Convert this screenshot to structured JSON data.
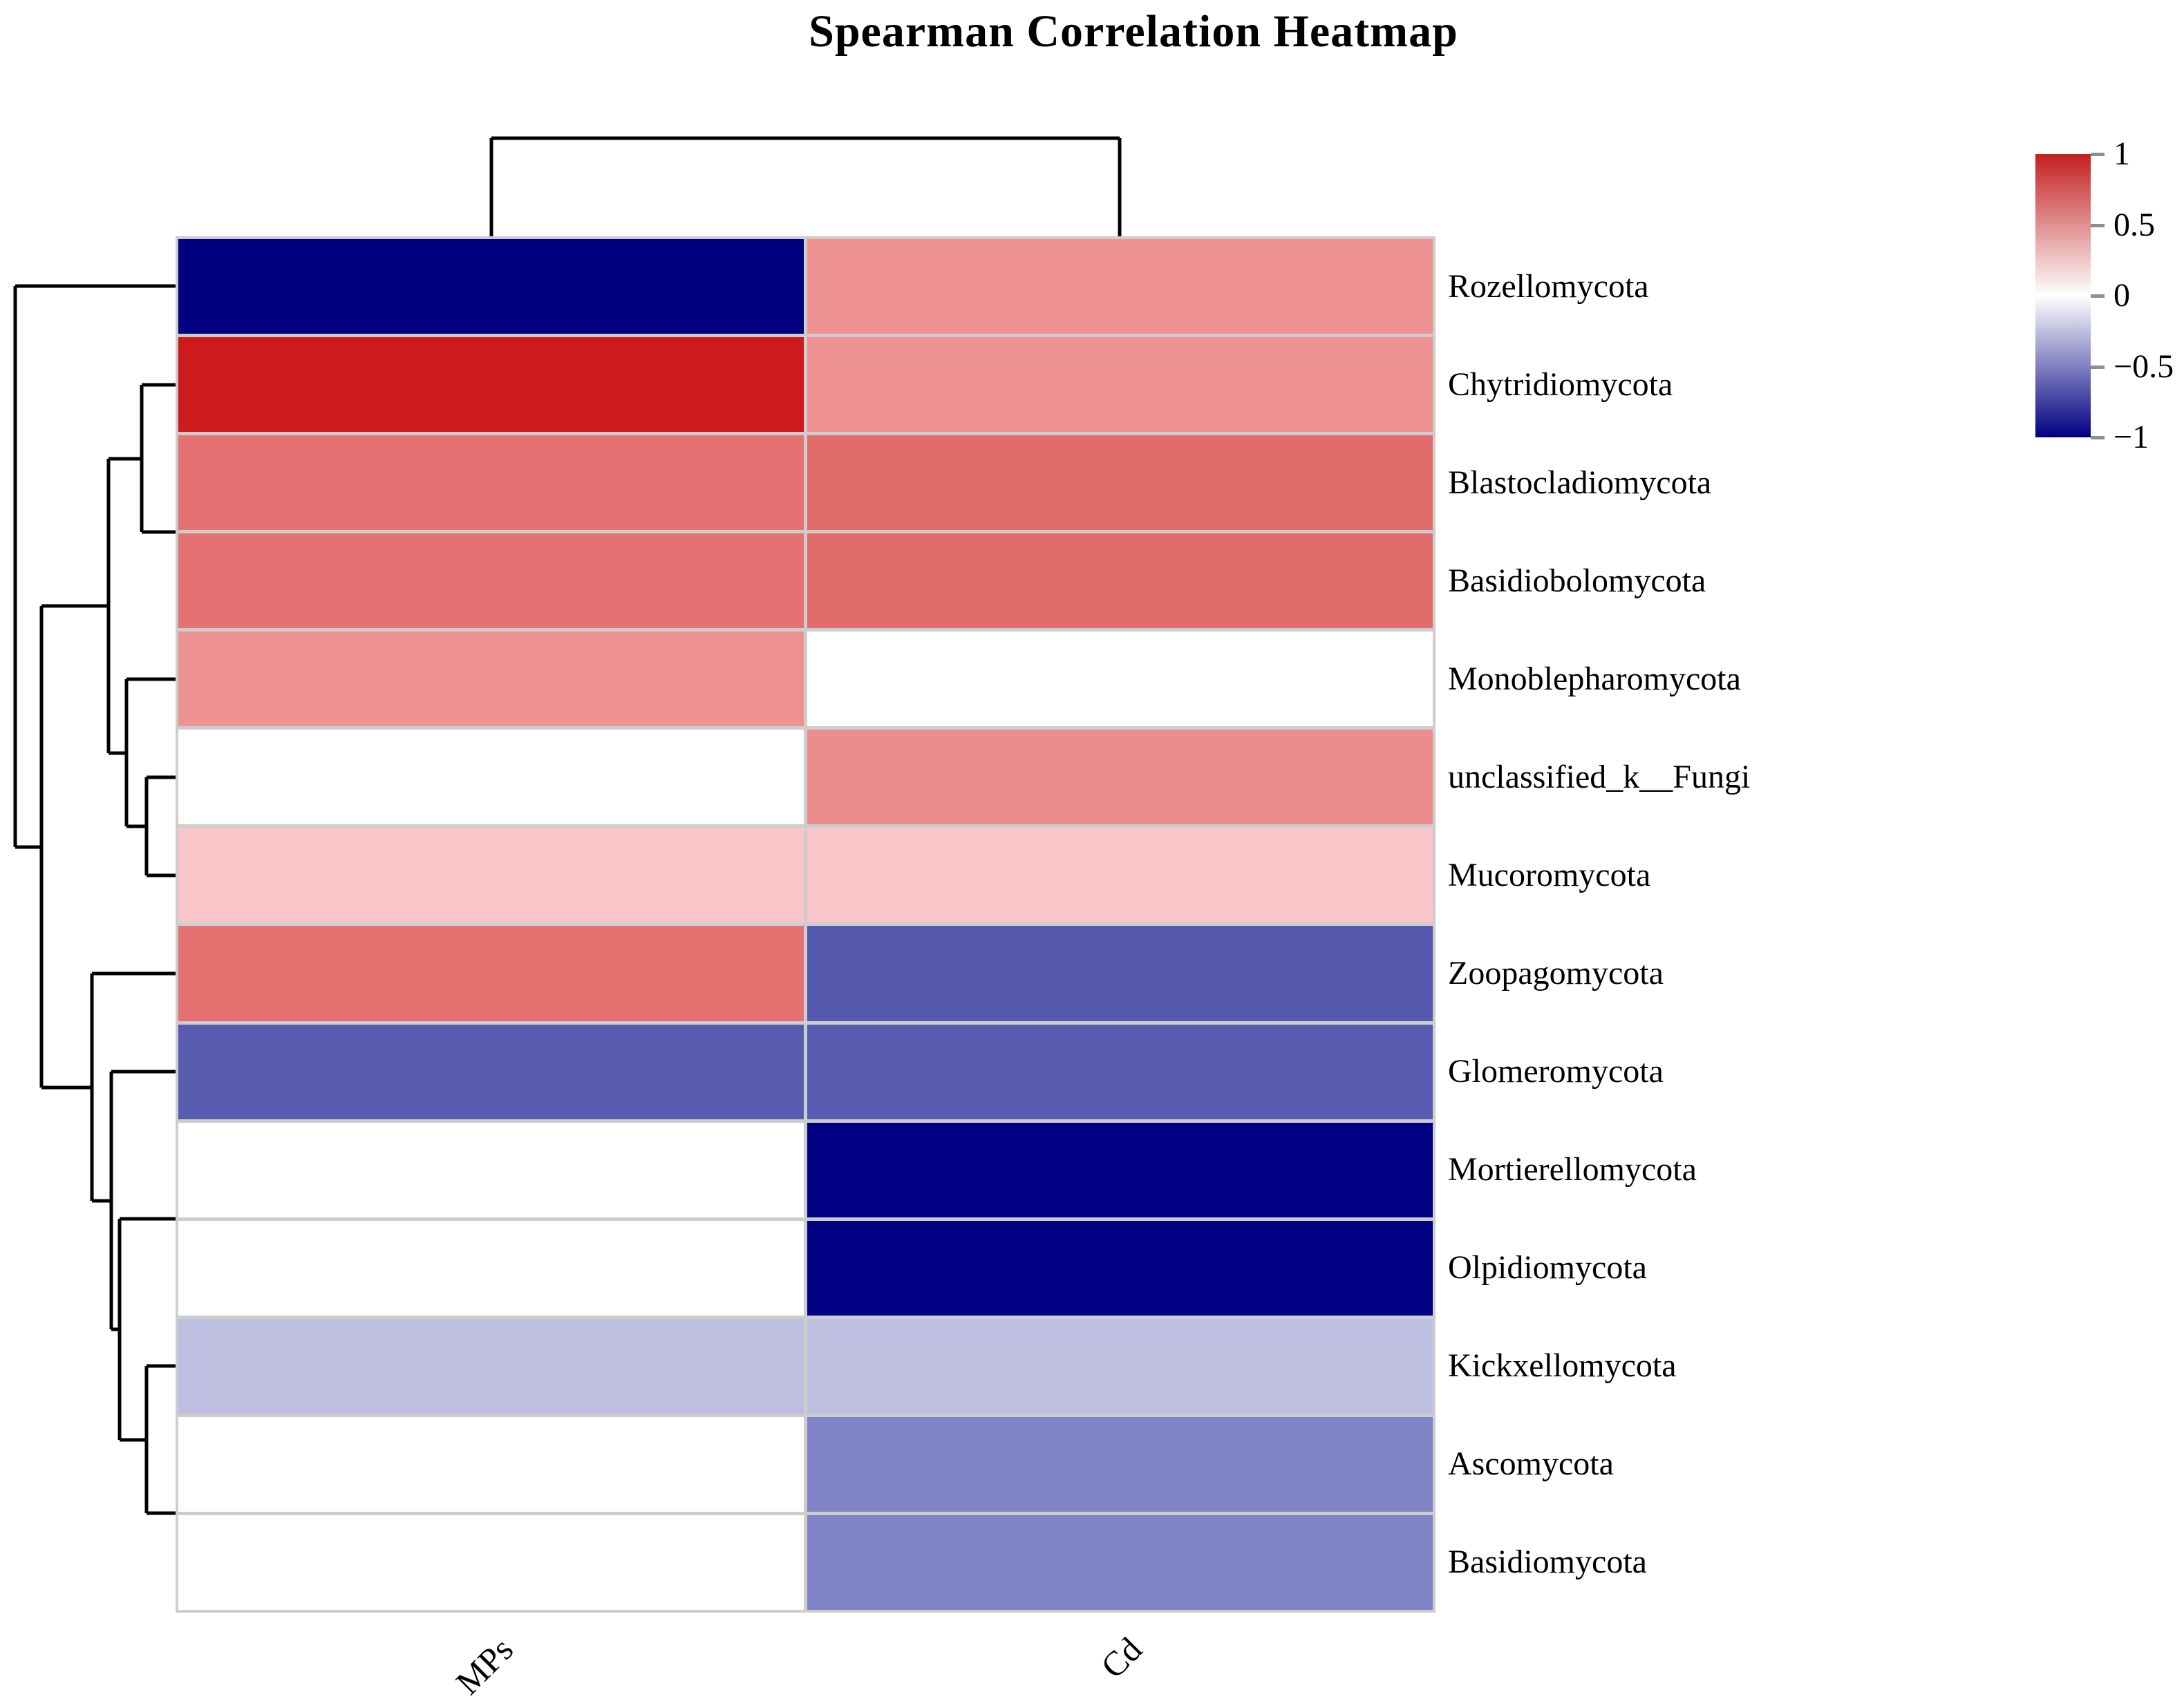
{
  "title": "Spearman Correlation Heatmap",
  "chart_data": {
    "type": "heatmap",
    "title": "Spearman Correlation Heatmap",
    "columns": [
      "MPs",
      "Cd"
    ],
    "rows": [
      "Rozellomycota",
      "Chytridiomycota",
      "Blastocladiomycota",
      "Basidiobolomycota",
      "Monoblepharomycota",
      "unclassified_k__Fungi",
      "Mucoromycota",
      "Zoopagomycota",
      "Glomeromycota",
      "Mortierellomycota",
      "Olpidiomycota",
      "Kickxellomycota",
      "Ascomycota",
      "Basidiomycota"
    ],
    "values": [
      [
        -1,
        0.5
      ],
      [
        1,
        0.5
      ],
      [
        0.65,
        0.7
      ],
      [
        0.65,
        0.7
      ],
      [
        0.5,
        0
      ],
      [
        0,
        0.5
      ],
      [
        0.25,
        0.25
      ],
      [
        0.65,
        -0.65
      ],
      [
        -0.65,
        -0.65
      ],
      [
        0,
        -1
      ],
      [
        0,
        -1
      ],
      [
        -0.25,
        -0.25
      ],
      [
        0,
        -0.5
      ],
      [
        0,
        -0.5
      ]
    ],
    "cell_colors": [
      [
        "#000080",
        "#ee9191"
      ],
      [
        "#cd1a1a",
        "#ee9191"
      ],
      [
        "#e57272",
        "#e26c6c"
      ],
      [
        "#e57272",
        "#e26c6c"
      ],
      [
        "#ee9191",
        "#ffffff"
      ],
      [
        "#ffffff",
        "#ec8d8d"
      ],
      [
        "#f8c6c8",
        "#f8c6c8"
      ],
      [
        "#e57070",
        "#5559ae"
      ],
      [
        "#585cb0",
        "#585cb0"
      ],
      [
        "#ffffff",
        "#010183"
      ],
      [
        "#ffffff",
        "#010183"
      ],
      [
        "#bdbee0",
        "#bdbee0"
      ],
      [
        "#ffffff",
        "#7e84c6"
      ],
      [
        "#ffffff",
        "#7e84c6"
      ]
    ],
    "grid_line_color": "#cdcdcd",
    "colorbar": {
      "range": [
        -1,
        1
      ],
      "tick_labels": [
        "1",
        "0.5",
        "0",
        "−0.5",
        "−1"
      ],
      "tick_values": [
        1,
        0.5,
        0,
        -0.5,
        -1
      ],
      "gradient_top": "#c32020",
      "gradient_mid": "#ffffff",
      "gradient_bottom": "#000080"
    },
    "clustering": {
      "dendrogram_color": "#000000",
      "row_segments": [
        [
          22,
          414,
          258,
          414
        ],
        [
          22,
          414,
          22,
          1226
        ],
        [
          22,
          1226,
          60,
          1226
        ],
        [
          60,
          877,
          60,
          1574
        ],
        [
          60,
          877,
          157,
          877
        ],
        [
          60,
          1574,
          133,
          1574
        ],
        [
          157,
          664,
          157,
          1090
        ],
        [
          157,
          664,
          205,
          664
        ],
        [
          157,
          1090,
          183,
          1090
        ],
        [
          205,
          557,
          205,
          770
        ],
        [
          205,
          557,
          258,
          557
        ],
        [
          205,
          770,
          262,
          770
        ],
        [
          262,
          699,
          262,
          841
        ],
        [
          183,
          983,
          183,
          1196
        ],
        [
          183,
          983,
          258,
          983
        ],
        [
          183,
          1196,
          212,
          1196
        ],
        [
          212,
          1125,
          212,
          1267
        ],
        [
          212,
          1125,
          258,
          1125
        ],
        [
          212,
          1267,
          258,
          1267
        ],
        [
          133,
          1409,
          133,
          1738
        ],
        [
          133,
          1409,
          258,
          1409
        ],
        [
          133,
          1738,
          161,
          1738
        ],
        [
          161,
          1551,
          161,
          1924
        ],
        [
          161,
          1551,
          258,
          1551
        ],
        [
          161,
          1924,
          173,
          1924
        ],
        [
          173,
          1764,
          173,
          2084
        ],
        [
          173,
          1764,
          262,
          1764
        ],
        [
          262,
          1693,
          262,
          1835
        ],
        [
          173,
          2084,
          212,
          2084
        ],
        [
          212,
          1977,
          258,
          1977
        ],
        [
          212,
          1977,
          212,
          2190
        ],
        [
          212,
          2190,
          262,
          2190
        ],
        [
          262,
          2119,
          262,
          2261
        ]
      ],
      "col_segments": [
        [
          711,
          200,
          711,
          346
        ],
        [
          711,
          200,
          1620,
          200
        ],
        [
          1620,
          200,
          1620,
          346
        ]
      ]
    }
  }
}
